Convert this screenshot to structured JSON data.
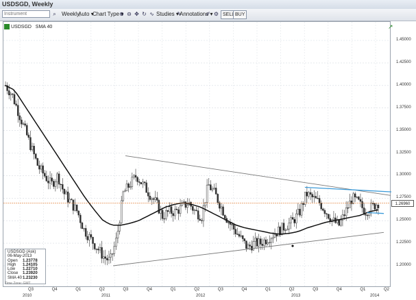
{
  "window": {
    "title": "USDSGD, Weekly"
  },
  "toolbar": {
    "instrument_placeholder": "Instrument",
    "interval": "Weekly,",
    "auto": "Auto",
    "chart_type": "Chart Type",
    "studies": "Studies",
    "annotations": "Annotations",
    "sell": "SELL",
    "buy": "BUY"
  },
  "legend": {
    "symbol": "USDSGD",
    "study": "SMA 40"
  },
  "info": {
    "title": "USDSGD (Ask)",
    "date": "06-May-2013",
    "open_label": "Open",
    "open": "1.23778",
    "high_label": "High",
    "high": "1.24105",
    "low_label": "Low",
    "low": "1.22710",
    "close_label": "Close",
    "close": "1.23920",
    "sma_label": "SMA 40",
    "sma": "1.23230",
    "timezone": "Time Zone: GMT"
  },
  "last_price": "1.26960",
  "colors": {
    "candle": "#2a2a2a",
    "sma": "#111111",
    "trend": "#777777",
    "blue_lines": "#3a9ad9",
    "last_line": "#e58c4a"
  },
  "chart_data": {
    "type": "candlestick",
    "y_axis_labels": [
      "1.45000",
      "1.42500",
      "1.40000",
      "1.37500",
      "1.35000",
      "1.32500",
      "1.30000",
      "1.27500",
      "1.25000",
      "1.22500",
      "1.20000"
    ],
    "ylim": [
      1.19,
      1.46
    ],
    "quarter_labels": [
      "Q3",
      "Q4",
      "Q1",
      "Q2",
      "Q3",
      "Q4",
      "Q1",
      "Q2",
      "Q3",
      "Q4",
      "Q1",
      "Q2",
      "Q3",
      "Q4",
      "Q1",
      "Q2"
    ],
    "year_labels": [
      "2010",
      "2011",
      "2012",
      "2013",
      "2014"
    ],
    "close_path": [
      1.4,
      1.39,
      1.37,
      1.35,
      1.33,
      1.31,
      1.3,
      1.29,
      1.3,
      1.28,
      1.27,
      1.26,
      1.24,
      1.23,
      1.22,
      1.21,
      1.205,
      1.23,
      1.28,
      1.29,
      1.3,
      1.29,
      1.28,
      1.27,
      1.255,
      1.26,
      1.26,
      1.265,
      1.27,
      1.26,
      1.255,
      1.29,
      1.28,
      1.265,
      1.25,
      1.24,
      1.23,
      1.22,
      1.225,
      1.225,
      1.23,
      1.235,
      1.24,
      1.245,
      1.25,
      1.26,
      1.28,
      1.275,
      1.27,
      1.26,
      1.25,
      1.245,
      1.26,
      1.275,
      1.27,
      1.26,
      1.265,
      1.27
    ],
    "sma_path": [
      1.4,
      1.395,
      1.38,
      1.365,
      1.35,
      1.335,
      1.32,
      1.305,
      1.29,
      1.275,
      1.262,
      1.25,
      1.245,
      1.245,
      1.247,
      1.25,
      1.255,
      1.26,
      1.265,
      1.268,
      1.27,
      1.268,
      1.265,
      1.26,
      1.255,
      1.25,
      1.245,
      1.242,
      1.24,
      1.238,
      1.236,
      1.235,
      1.236,
      1.238,
      1.242,
      1.245,
      1.248,
      1.25,
      1.252,
      1.254,
      1.256,
      1.26,
      1.262
    ],
    "trendlines": [
      {
        "name": "upper",
        "from": [
          "2011-Q3",
          1.322
        ],
        "to": [
          "2014-Q1",
          1.278
        ]
      },
      {
        "name": "lower",
        "from": [
          "2011-Q2",
          1.2
        ],
        "to": [
          "2014-Q1",
          1.237
        ]
      }
    ],
    "last_value": 1.2696
  }
}
